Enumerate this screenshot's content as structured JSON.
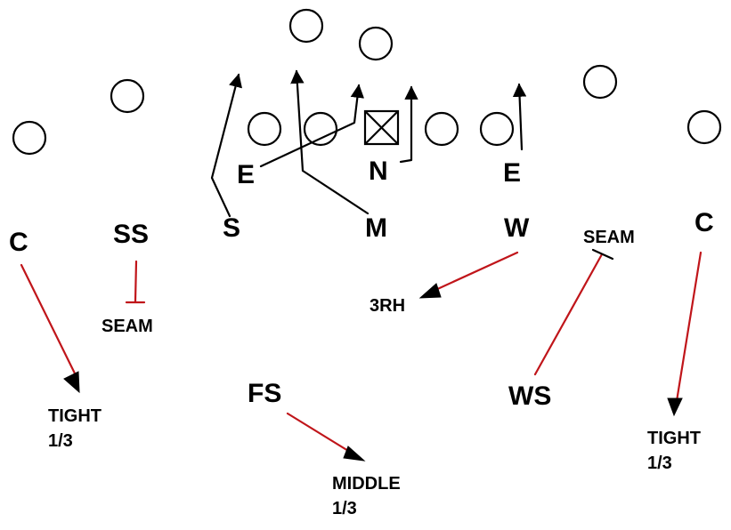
{
  "colors": {
    "line": "#000000",
    "route": "#c0151a",
    "background": "#ffffff"
  },
  "players": {
    "end_left": "E",
    "nose": "N",
    "end_right": "E",
    "sam": "S",
    "mike": "M",
    "will": "W",
    "corner_left": "C",
    "strong_safety": "SS",
    "free_safety": "FS",
    "weak_safety": "WS",
    "corner_right": "C"
  },
  "assignments": {
    "seam_left": "SEAM",
    "seam_right": "SEAM",
    "three_rh": "3RH",
    "tight_left": [
      "TIGHT",
      "1/3"
    ],
    "middle": [
      "MIDDLE",
      "1/3"
    ],
    "tight_right": [
      "TIGHT",
      "1/3"
    ]
  },
  "offense": {
    "center_marker": "center-box-icon",
    "player_icon": "offense-circle-icon",
    "count": 10
  }
}
